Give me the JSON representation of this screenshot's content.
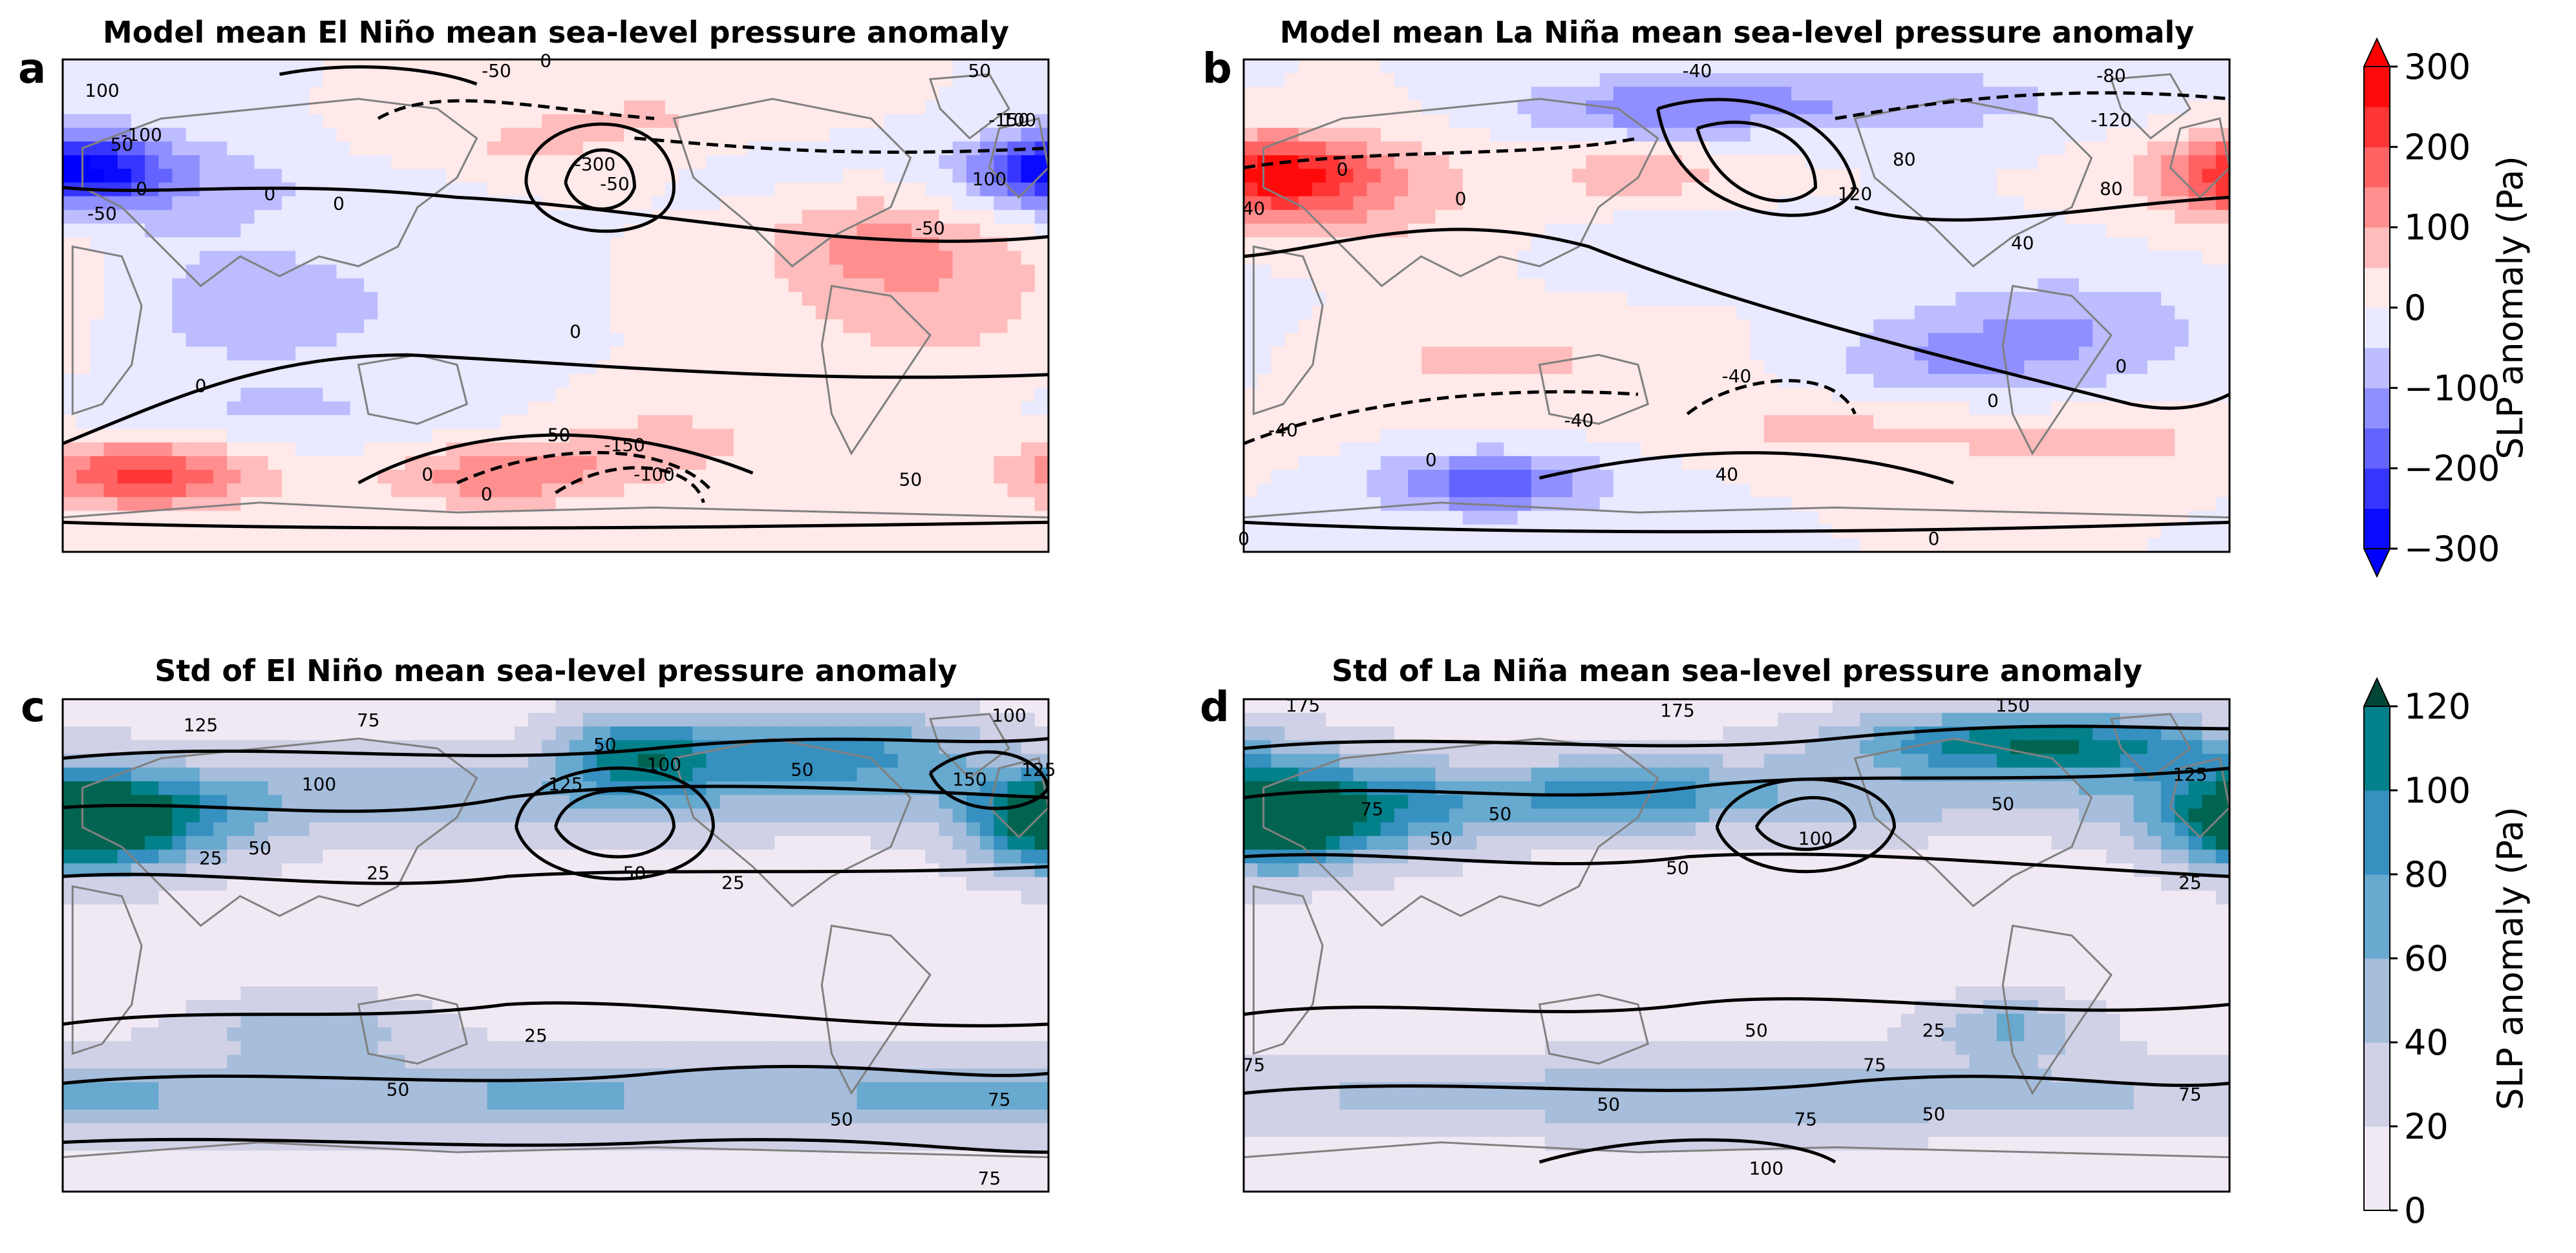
{
  "chart_data": [
    {
      "id": "a",
      "type": "heatmap",
      "panel_letter": "a",
      "title": "Model mean El Niño mean sea-level pressure anomaly",
      "colormap": "bwr",
      "vmin": -300,
      "vmax": 300,
      "lon_range": [
        -180,
        180
      ],
      "lat_range": [
        -90,
        90
      ],
      "anomalies": [
        {
          "lon": -177,
          "lat": 50,
          "amp": -260,
          "slon": 22,
          "slat": 9
        },
        {
          "lon": -152,
          "lat": 45,
          "amp": -90,
          "slon": 35,
          "slat": 14
        },
        {
          "lon": 140,
          "lat": 8,
          "amp": 95,
          "slon": 40,
          "slat": 22
        },
        {
          "lon": 110,
          "lat": 25,
          "amp": 60,
          "slon": 25,
          "slat": 12
        },
        {
          "lon": -110,
          "lat": 0,
          "amp": -80,
          "slon": 45,
          "slat": 18
        },
        {
          "lon": -150,
          "lat": -62,
          "amp": 210,
          "slon": 30,
          "slat": 9
        },
        {
          "lon": -20,
          "lat": -62,
          "amp": 140,
          "slon": 30,
          "slat": 8
        },
        {
          "lon": 40,
          "lat": -50,
          "amp": 70,
          "slon": 30,
          "slat": 10
        },
        {
          "lon": -100,
          "lat": -40,
          "amp": -50,
          "slon": 50,
          "slat": 10
        },
        {
          "lon": -20,
          "lat": 55,
          "amp": 60,
          "slon": 40,
          "slat": 10
        },
        {
          "lon": 40,
          "lat": 70,
          "amp": 50,
          "slon": 40,
          "slat": 8
        },
        {
          "lon": 90,
          "lat": 50,
          "amp": -25,
          "slon": 40,
          "slat": 12
        },
        {
          "lon": -60,
          "lat": 45,
          "amp": -45,
          "slon": 35,
          "slat": 10
        }
      ],
      "contour_labels": [
        "-50",
        "0",
        "50",
        "100",
        "-100",
        "-150",
        "-300",
        "-50",
        "100",
        "-50",
        "-50",
        "0",
        "0",
        "0",
        "-50",
        "0",
        "50",
        "0",
        "0",
        "-50",
        "-150",
        "-100",
        "0",
        "50",
        "100"
      ]
    },
    {
      "id": "b",
      "type": "heatmap",
      "panel_letter": "b",
      "title": "Model mean La Niña mean sea-level pressure anomaly",
      "colormap": "bwr",
      "vmin": -300,
      "vmax": 300,
      "lon_range": [
        -180,
        180
      ],
      "lat_range": [
        -90,
        90
      ],
      "anomalies": [
        {
          "lon": -170,
          "lat": 48,
          "amp": 240,
          "slon": 24,
          "slat": 10
        },
        {
          "lon": -140,
          "lat": 42,
          "amp": 90,
          "slon": 35,
          "slat": 14
        },
        {
          "lon": -35,
          "lat": 48,
          "amp": 80,
          "slon": 25,
          "slat": 8
        },
        {
          "lon": -30,
          "lat": 72,
          "amp": -130,
          "slon": 35,
          "slat": 8
        },
        {
          "lon": 60,
          "lat": 75,
          "amp": -90,
          "slon": 50,
          "slat": 8
        },
        {
          "lon": 120,
          "lat": -10,
          "amp": -100,
          "slon": 40,
          "slat": 15
        },
        {
          "lon": 70,
          "lat": -20,
          "amp": -70,
          "slon": 30,
          "slat": 10
        },
        {
          "lon": -90,
          "lat": -20,
          "amp": 60,
          "slon": 50,
          "slat": 12
        },
        {
          "lon": -90,
          "lat": -65,
          "amp": -180,
          "slon": 30,
          "slat": 8
        },
        {
          "lon": 130,
          "lat": -50,
          "amp": 70,
          "slon": 40,
          "slat": 8
        },
        {
          "lon": 30,
          "lat": -45,
          "amp": 60,
          "slon": 40,
          "slat": 8
        },
        {
          "lon": -20,
          "lat": 20,
          "amp": -40,
          "slon": 30,
          "slat": 10
        }
      ],
      "contour_labels": [
        "-40",
        "-80",
        "-120",
        "40",
        "0",
        "0",
        "80",
        "120",
        "80",
        "40",
        "0",
        "0",
        "-40",
        "-40",
        "-40",
        "0",
        "40",
        "0",
        "0"
      ]
    },
    {
      "id": "c",
      "type": "heatmap",
      "panel_letter": "c",
      "title": "Std of El Niño mean sea-level pressure anomaly",
      "colormap": "PuBuGn",
      "vmin": 0,
      "vmax": 120,
      "lon_range": [
        -180,
        180
      ],
      "lat_range": [
        -90,
        90
      ],
      "anomalies": [
        {
          "lon": -175,
          "lat": 45,
          "amp": 120,
          "slon": 22,
          "slat": 12
        },
        {
          "lon": -145,
          "lat": 45,
          "amp": 60,
          "slon": 30,
          "slat": 12
        },
        {
          "lon": 30,
          "lat": 70,
          "amp": 80,
          "slon": 20,
          "slat": 10
        },
        {
          "lon": 100,
          "lat": 72,
          "amp": 70,
          "slon": 40,
          "slat": 10
        },
        {
          "lon": 0,
          "lat": -55,
          "amp": 50,
          "slon": 180,
          "slat": 10
        },
        {
          "lon": -90,
          "lat": -30,
          "amp": 40,
          "slon": 30,
          "slat": 8
        },
        {
          "lon": 170,
          "lat": -55,
          "amp": 25,
          "slon": 40,
          "slat": 10
        },
        {
          "lon": 0,
          "lat": 55,
          "amp": 40,
          "slon": 180,
          "slat": 10
        }
      ],
      "contour_labels": [
        "125",
        "75",
        "100",
        "50",
        "100",
        "50",
        "125",
        "100",
        "50",
        "150",
        "125",
        "50",
        "25",
        "25",
        "25",
        "50",
        "75",
        "50",
        "25",
        "75"
      ]
    },
    {
      "id": "d",
      "type": "heatmap",
      "panel_letter": "d",
      "title": "Std of La Niña mean sea-level pressure anomaly",
      "colormap": "PuBuGn",
      "vmin": 0,
      "vmax": 120,
      "lon_range": [
        -180,
        180
      ],
      "lat_range": [
        -90,
        90
      ],
      "anomalies": [
        {
          "lon": -172,
          "lat": 45,
          "amp": 115,
          "slon": 22,
          "slat": 12
        },
        {
          "lon": -140,
          "lat": 48,
          "amp": 60,
          "slon": 35,
          "slat": 12
        },
        {
          "lon": 140,
          "lat": 72,
          "amp": 60,
          "slon": 40,
          "slat": 8
        },
        {
          "lon": 90,
          "lat": 75,
          "amp": 70,
          "slon": 40,
          "slat": 8
        },
        {
          "lon": 0,
          "lat": -55,
          "amp": 40,
          "slon": 180,
          "slat": 10
        },
        {
          "lon": 100,
          "lat": -30,
          "amp": 50,
          "slon": 20,
          "slat": 8
        },
        {
          "lon": 0,
          "lat": 55,
          "amp": 40,
          "slon": 180,
          "slat": 10
        },
        {
          "lon": -40,
          "lat": 55,
          "amp": 45,
          "slon": 30,
          "slat": 8
        }
      ],
      "contour_labels": [
        "175",
        "175",
        "150",
        "75",
        "50",
        "50",
        "100",
        "50",
        "50",
        "25",
        "125",
        "25",
        "50",
        "75",
        "75",
        "50",
        "50",
        "75",
        "75",
        "100"
      ]
    }
  ],
  "colorbars": [
    {
      "id": "top",
      "label": "SLP anomaly (Pa)",
      "colormap": "bwr",
      "ticks": [
        "300",
        "200",
        "100",
        "0",
        "−100",
        "−200",
        "−300"
      ],
      "levels": [
        -300,
        -250,
        -200,
        -150,
        -100,
        -50,
        0,
        50,
        100,
        150,
        200,
        250,
        300
      ],
      "extend": "both"
    },
    {
      "id": "bottom",
      "label": "SLP anomaly (Pa)",
      "colormap": "PuBuGn",
      "ticks": [
        "120",
        "100",
        "80",
        "60",
        "40",
        "20",
        "0"
      ],
      "levels": [
        0,
        20,
        40,
        60,
        80,
        100,
        120
      ],
      "extend": "max"
    }
  ],
  "colors": {
    "coastline": "#808080",
    "contour": "#000000",
    "frame": "#000000"
  }
}
